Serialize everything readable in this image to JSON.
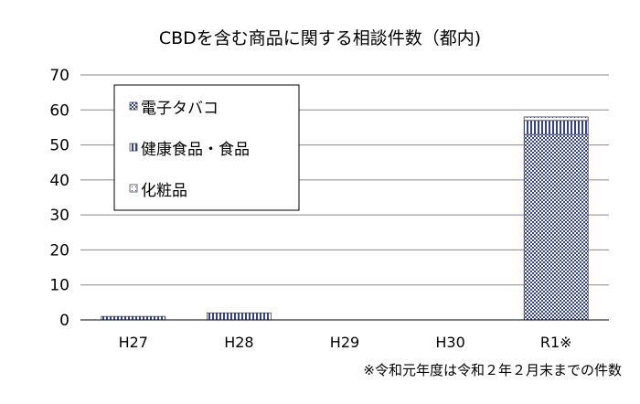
{
  "chart_data": {
    "type": "bar",
    "stacked": true,
    "title": "CBDを含む商品に関する相談件数（都内)",
    "xlabel": "",
    "ylabel": "",
    "categories": [
      "H27",
      "H28",
      "H29",
      "H30",
      "R1※"
    ],
    "ylim": [
      0,
      70
    ],
    "yticks": [
      0,
      10,
      20,
      30,
      40,
      50,
      60,
      70
    ],
    "grid": true,
    "legend_position": "top-left",
    "series": [
      {
        "name": "電子タバコ",
        "values": [
          0,
          0,
          0,
          0,
          53
        ],
        "pattern": "checker",
        "color": "#2f3f9a"
      },
      {
        "name": "健康食品・食品",
        "values": [
          1,
          2,
          0,
          0,
          4
        ],
        "pattern": "vertical",
        "color": "#2f3f9a"
      },
      {
        "name": "化粧品",
        "values": [
          0,
          0,
          0,
          0,
          1
        ],
        "pattern": "dots",
        "color": "#2f3f9a"
      }
    ],
    "footnote": "※令和元年度は令和２年２月末までの件数"
  }
}
